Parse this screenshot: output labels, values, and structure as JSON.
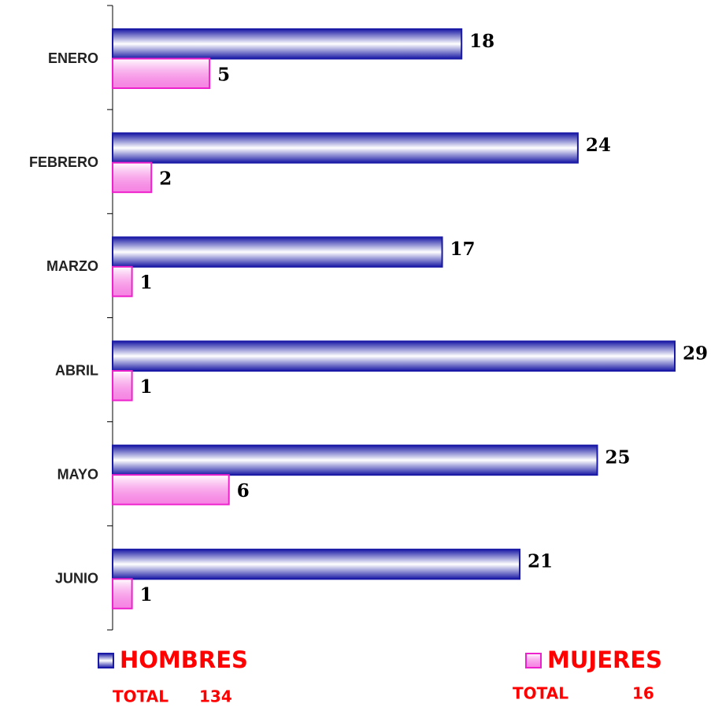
{
  "chart_data": {
    "type": "hbar",
    "categories": [
      "ENERO",
      "FEBRERO",
      "MARZO",
      "ABRIL",
      "MAYO",
      "JUNIO"
    ],
    "series": [
      {
        "name": "HOMBRES",
        "color": "#1a1aa6",
        "values": [
          18,
          24,
          17,
          29,
          25,
          21
        ],
        "total_text": "TOTAL",
        "total": 134
      },
      {
        "name": "MUJERES",
        "color": "#ee22cc",
        "values": [
          5,
          2,
          1,
          1,
          6,
          1
        ],
        "total_text": "TOTAL",
        "total": 16
      }
    ]
  }
}
